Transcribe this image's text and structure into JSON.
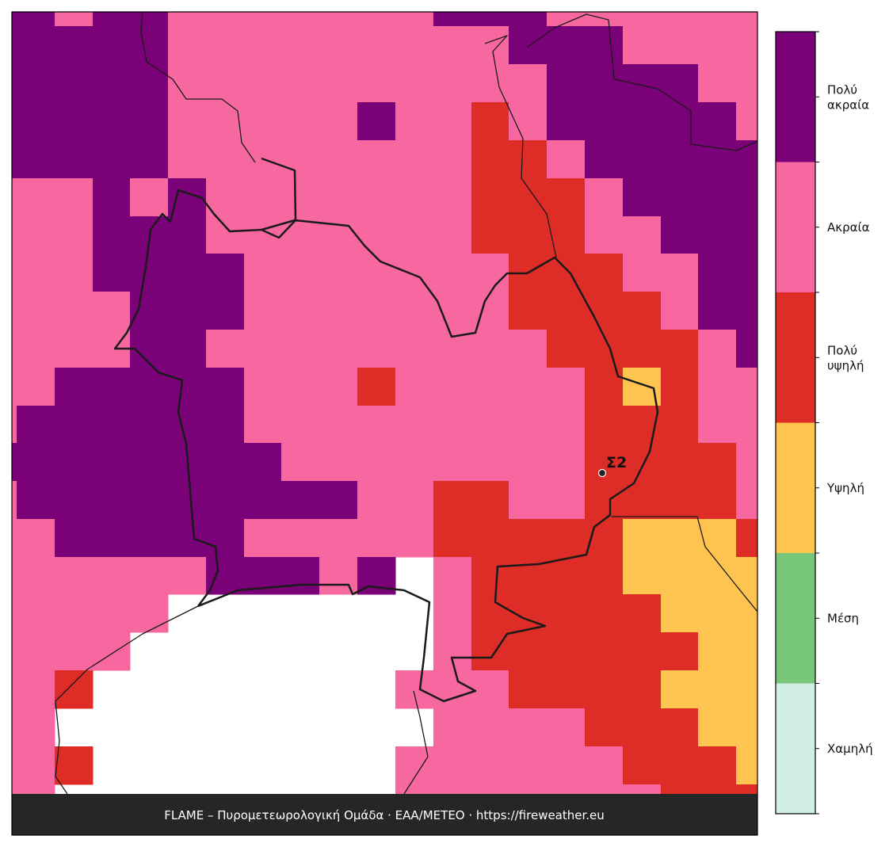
{
  "map": {
    "classes": [
      {
        "lines": [
          "Χαμηλή"
        ],
        "color": "#d0ede6"
      },
      {
        "lines": [
          "Μέση"
        ],
        "color": "#78c679"
      },
      {
        "lines": [
          "Υψηλή"
        ],
        "color": "#fec44f"
      },
      {
        "lines": [
          "Πολύ",
          "υψηλή"
        ],
        "color": "#de2d26"
      },
      {
        "lines": [
          "Ακραία"
        ],
        "color": "#f768a1"
      },
      {
        "lines": [
          "Πολύ",
          "ακραία"
        ],
        "color": "#7a0177"
      }
    ],
    "grid": [
      [
        5,
        5,
        4,
        5,
        5,
        4,
        4,
        4,
        4,
        4,
        4,
        4,
        5,
        5,
        5,
        4,
        4,
        4,
        4,
        4,
        4
      ],
      [
        5,
        5,
        5,
        5,
        5,
        4,
        4,
        4,
        4,
        4,
        4,
        4,
        4,
        4,
        5,
        5,
        5,
        4,
        4,
        4,
        4
      ],
      [
        5,
        5,
        5,
        5,
        5,
        4,
        4,
        4,
        4,
        4,
        4,
        4,
        4,
        4,
        4,
        5,
        5,
        5,
        5,
        4,
        4
      ],
      [
        5,
        5,
        5,
        5,
        5,
        4,
        4,
        4,
        4,
        4,
        5,
        4,
        4,
        3,
        4,
        5,
        5,
        5,
        5,
        5,
        4
      ],
      [
        5,
        5,
        5,
        5,
        5,
        4,
        4,
        4,
        4,
        4,
        4,
        4,
        4,
        3,
        3,
        4,
        5,
        5,
        5,
        5,
        5
      ],
      [
        4,
        4,
        4,
        5,
        4,
        5,
        4,
        4,
        4,
        4,
        4,
        4,
        4,
        3,
        3,
        3,
        4,
        5,
        5,
        5,
        5
      ],
      [
        4,
        4,
        4,
        5,
        5,
        5,
        4,
        4,
        4,
        4,
        4,
        4,
        4,
        3,
        3,
        3,
        4,
        4,
        5,
        5,
        5
      ],
      [
        4,
        4,
        4,
        5,
        5,
        5,
        5,
        4,
        4,
        4,
        4,
        4,
        4,
        4,
        3,
        3,
        3,
        4,
        4,
        5,
        5
      ],
      [
        4,
        4,
        4,
        4,
        5,
        5,
        5,
        4,
        4,
        4,
        4,
        4,
        4,
        4,
        3,
        3,
        3,
        3,
        4,
        5,
        5
      ],
      [
        4,
        4,
        4,
        4,
        5,
        5,
        4,
        4,
        4,
        4,
        4,
        4,
        4,
        4,
        4,
        3,
        3,
        3,
        3,
        4,
        5
      ],
      [
        4,
        4,
        5,
        5,
        5,
        5,
        5,
        4,
        4,
        4,
        3,
        4,
        4,
        4,
        4,
        4,
        3,
        2,
        3,
        4,
        4
      ],
      [
        4,
        5,
        5,
        5,
        5,
        5,
        5,
        4,
        4,
        4,
        4,
        4,
        4,
        4,
        4,
        4,
        3,
        3,
        3,
        4,
        4
      ],
      [
        5,
        5,
        5,
        5,
        5,
        5,
        5,
        5,
        4,
        4,
        4,
        4,
        4,
        4,
        4,
        4,
        3,
        3,
        3,
        3,
        4
      ],
      [
        4,
        5,
        5,
        5,
        5,
        5,
        5,
        5,
        5,
        5,
        4,
        4,
        3,
        3,
        4,
        4,
        3,
        3,
        3,
        3,
        4
      ],
      [
        4,
        4,
        5,
        5,
        5,
        5,
        5,
        4,
        4,
        4,
        4,
        4,
        3,
        3,
        3,
        3,
        3,
        2,
        2,
        2,
        3
      ],
      [
        4,
        4,
        4,
        4,
        4,
        4,
        5,
        5,
        5,
        4,
        5,
        null,
        4,
        3,
        3,
        3,
        3,
        2,
        2,
        2,
        2
      ],
      [
        4,
        4,
        4,
        4,
        4,
        null,
        null,
        null,
        null,
        null,
        null,
        null,
        4,
        3,
        3,
        3,
        3,
        3,
        2,
        2,
        2
      ],
      [
        4,
        4,
        4,
        4,
        null,
        null,
        null,
        null,
        null,
        null,
        null,
        null,
        4,
        3,
        3,
        3,
        3,
        3,
        3,
        2,
        2
      ],
      [
        4,
        4,
        3,
        null,
        null,
        null,
        null,
        null,
        null,
        null,
        null,
        4,
        4,
        4,
        3,
        3,
        3,
        3,
        2,
        2,
        2
      ],
      [
        4,
        4,
        null,
        null,
        null,
        null,
        null,
        null,
        null,
        null,
        null,
        null,
        4,
        4,
        4,
        4,
        3,
        3,
        3,
        2,
        2
      ],
      [
        4,
        4,
        3,
        null,
        null,
        null,
        null,
        null,
        null,
        null,
        null,
        4,
        4,
        4,
        4,
        4,
        4,
        3,
        3,
        3,
        2
      ],
      [
        4,
        4,
        null,
        null,
        null,
        null,
        null,
        null,
        null,
        null,
        null,
        4,
        4,
        4,
        4,
        4,
        4,
        4,
        3,
        3,
        3
      ]
    ],
    "marker": {
      "label": "Σ2"
    },
    "footer": "FLAME – Πυρομετεωρολογική Ομάδα · ΕΑΑ/METEO · https://fireweather.eu"
  }
}
